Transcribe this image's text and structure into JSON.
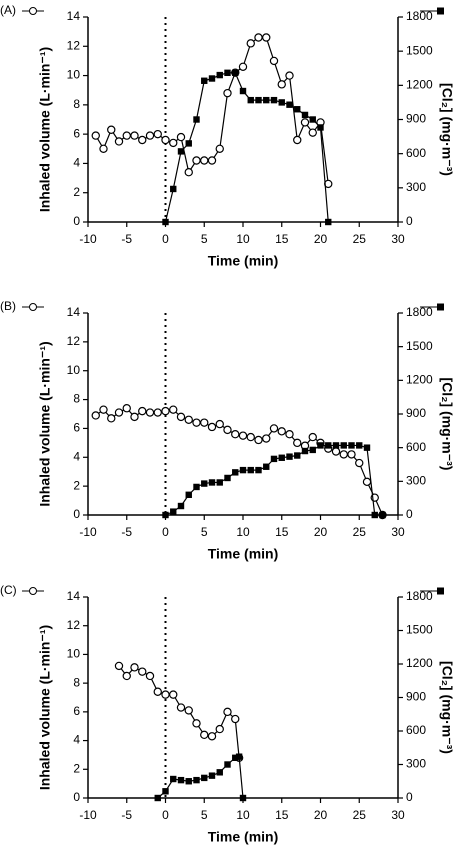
{
  "chart_data": [
    {
      "type": "line",
      "panel_label": "(A)",
      "xlabel": "Time (min)",
      "ylabel": "Inhaled volume (L·min⁻¹)",
      "y2label": "[Cl₂] (mg·m⁻³)",
      "xlim": [
        -10,
        30
      ],
      "xticks": [
        -10,
        -5,
        0,
        5,
        10,
        15,
        20,
        25,
        30
      ],
      "ylim": [
        0,
        14
      ],
      "yticks": [
        0,
        2,
        4,
        6,
        8,
        10,
        12,
        14
      ],
      "y2lim": [
        0,
        1800
      ],
      "y2ticks": [
        0,
        300,
        600,
        900,
        1200,
        1500,
        1800
      ],
      "vline": 0,
      "series": [
        {
          "marker": "circle",
          "color": "#000000",
          "axis": "y",
          "x": [
            -9,
            -8,
            -7,
            -6,
            -5,
            -4,
            -3,
            -2,
            -1,
            0,
            1,
            2,
            3,
            4,
            5,
            6,
            7,
            8,
            9,
            10,
            11,
            12,
            13,
            14,
            15,
            16,
            17,
            18,
            19,
            20,
            21
          ],
          "values": [
            5.9,
            5.0,
            6.3,
            5.5,
            5.9,
            5.9,
            5.6,
            5.9,
            6.0,
            5.6,
            5.4,
            5.8,
            3.4,
            4.2,
            4.2,
            4.2,
            5.0,
            8.8,
            10.2,
            10.6,
            12.2,
            12.6,
            12.6,
            11.0,
            9.4,
            10.0,
            5.6,
            6.8,
            6.1,
            6.8,
            2.6
          ]
        },
        {
          "marker": "square",
          "color": "#000000",
          "axis": "y2",
          "x": [
            0,
            1,
            2,
            3,
            4,
            5,
            6,
            7,
            8,
            9,
            10,
            11,
            12,
            13,
            14,
            15,
            16,
            17,
            18,
            19,
            20,
            21
          ],
          "values": [
            0,
            290,
            620,
            690,
            900,
            1240,
            1260,
            1290,
            1310,
            1310,
            1150,
            1070,
            1070,
            1070,
            1070,
            1050,
            1030,
            990,
            940,
            900,
            830,
            0
          ]
        }
      ]
    },
    {
      "type": "line",
      "panel_label": "(B)",
      "xlabel": "Time (min)",
      "ylabel": "Inhaled volume (L·min⁻¹)",
      "y2label": "[Cl₂] (mg·m⁻³)",
      "xlim": [
        -10,
        30
      ],
      "xticks": [
        -10,
        -5,
        0,
        5,
        10,
        15,
        20,
        25,
        30
      ],
      "ylim": [
        0,
        14
      ],
      "yticks": [
        0,
        2,
        4,
        6,
        8,
        10,
        12,
        14
      ],
      "y2lim": [
        0,
        1800
      ],
      "y2ticks": [
        0,
        300,
        600,
        900,
        1200,
        1500,
        1800
      ],
      "vline": 0,
      "series": [
        {
          "marker": "circle",
          "color": "#000000",
          "axis": "y",
          "x": [
            -9,
            -8,
            -7,
            -6,
            -5,
            -4,
            -3,
            -2,
            -1,
            0,
            1,
            2,
            3,
            4,
            5,
            6,
            7,
            8,
            9,
            10,
            11,
            12,
            13,
            14,
            15,
            16,
            17,
            18,
            19,
            20,
            21,
            22,
            23,
            24,
            25,
            26,
            27,
            28
          ],
          "values": [
            6.9,
            7.3,
            6.7,
            7.1,
            7.4,
            6.8,
            7.2,
            7.1,
            7.1,
            7.2,
            7.3,
            6.8,
            6.6,
            6.4,
            6.4,
            6.1,
            6.3,
            5.9,
            5.6,
            5.5,
            5.4,
            5.2,
            5.3,
            6.0,
            5.8,
            5.6,
            5.0,
            4.8,
            5.4,
            5.0,
            4.6,
            4.4,
            4.2,
            4.2,
            3.6,
            2.3,
            1.2,
            0
          ]
        },
        {
          "marker": "square",
          "color": "#000000",
          "axis": "y2",
          "x": [
            0,
            1,
            2,
            3,
            4,
            5,
            6,
            7,
            8,
            9,
            10,
            11,
            12,
            13,
            14,
            15,
            16,
            17,
            18,
            19,
            20,
            21,
            22,
            23,
            24,
            25,
            26,
            27,
            28
          ],
          "values": [
            0,
            30,
            80,
            180,
            250,
            280,
            290,
            290,
            330,
            380,
            400,
            400,
            400,
            430,
            500,
            510,
            520,
            530,
            570,
            580,
            620,
            620,
            620,
            620,
            620,
            620,
            600,
            0,
            0
          ]
        }
      ]
    },
    {
      "type": "line",
      "panel_label": "(C)",
      "xlabel": "Time (min)",
      "ylabel": "Inhaled volume (L·min⁻¹)",
      "y2label": "[Cl₂] (mg·m⁻³)",
      "xlim": [
        -10,
        30
      ],
      "xticks": [
        -10,
        -5,
        0,
        5,
        10,
        15,
        20,
        25,
        30
      ],
      "ylim": [
        0,
        14
      ],
      "yticks": [
        0,
        2,
        4,
        6,
        8,
        10,
        12,
        14
      ],
      "y2lim": [
        0,
        1800
      ],
      "y2ticks": [
        0,
        300,
        600,
        900,
        1200,
        1500,
        1800
      ],
      "vline": 0,
      "series": [
        {
          "marker": "circle",
          "color": "#000000",
          "axis": "y",
          "x": [
            -6,
            -5,
            -4,
            -3,
            -2,
            -1,
            0,
            1,
            2,
            3,
            4,
            5,
            6,
            7,
            8,
            9,
            9.5
          ],
          "values": [
            9.2,
            8.5,
            9.1,
            8.8,
            8.5,
            7.4,
            7.2,
            7.2,
            6.3,
            6.1,
            5.2,
            4.4,
            4.3,
            4.8,
            6.0,
            5.5,
            2.8
          ]
        },
        {
          "marker": "square",
          "color": "#000000",
          "axis": "y2",
          "x": [
            -1,
            0,
            1,
            2,
            3,
            4,
            5,
            6,
            7,
            8,
            9,
            9.5,
            10
          ],
          "values": [
            0,
            60,
            170,
            160,
            150,
            160,
            180,
            200,
            230,
            300,
            360,
            370,
            0
          ]
        }
      ]
    }
  ]
}
